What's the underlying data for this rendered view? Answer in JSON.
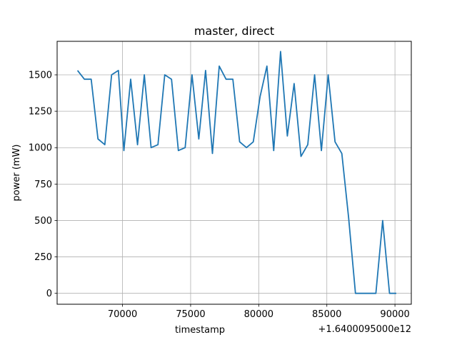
{
  "chart_data": {
    "type": "line",
    "title": "master, direct",
    "xlabel": "timestamp",
    "ylabel": "power (mW)",
    "x_offset_label": "+1.6400095000e12",
    "xlim": [
      65200,
      91200
    ],
    "ylim": [
      -75,
      1730
    ],
    "xticks": [
      70000,
      75000,
      80000,
      85000,
      90000
    ],
    "xtick_labels": [
      "70000",
      "75000",
      "80000",
      "85000",
      "90000"
    ],
    "yticks": [
      0,
      250,
      500,
      750,
      1000,
      1250,
      1500
    ],
    "ytick_labels": [
      "0",
      "250",
      "500",
      "750",
      "1000",
      "1250",
      "1500"
    ],
    "grid": true,
    "line_color": "#1f77b4",
    "series": [
      {
        "x": [
          66700,
          67200,
          67700,
          68200,
          68700,
          69200,
          69700,
          70100,
          70600,
          71100,
          71600,
          72100,
          72600,
          73100,
          73600,
          74100,
          74600,
          75100,
          75600,
          76100,
          76600,
          77100,
          77600,
          78100,
          78600,
          79100,
          79600,
          80100,
          80600,
          81100,
          81600,
          82100,
          82600,
          83100,
          83600,
          84100,
          84600,
          85100,
          85600,
          86100,
          86600,
          87100,
          87600,
          88100,
          88600,
          89100,
          89600,
          90100
        ],
        "y": [
          1530,
          1470,
          1470,
          1060,
          1020,
          1500,
          1530,
          980,
          1470,
          1020,
          1500,
          1000,
          1020,
          1500,
          1470,
          980,
          1000,
          1500,
          1060,
          1530,
          960,
          1560,
          1470,
          1470,
          1040,
          1000,
          1040,
          1350,
          1560,
          980,
          1660,
          1080,
          1440,
          940,
          1020,
          1500,
          980,
          1500,
          1040,
          960,
          520,
          0,
          0,
          0,
          0,
          500,
          0,
          0
        ]
      }
    ]
  }
}
